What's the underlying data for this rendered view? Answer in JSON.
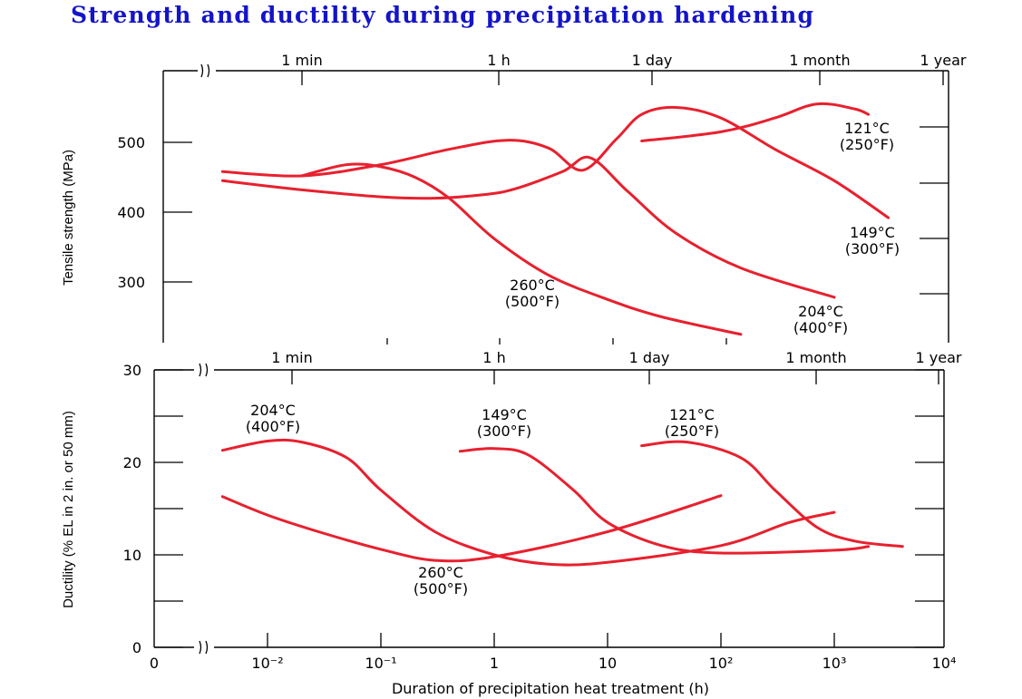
{
  "title": "Strength and ductility during precipitation hardening",
  "colors": {
    "title": "#1414c8",
    "curve": "#e8202e",
    "axis": "#000000"
  },
  "chart_data": [
    {
      "type": "line",
      "ylabel": "Tensile strength (MPa)",
      "xscale": "log",
      "xlim": [
        0.001,
        10000
      ],
      "ylim": [
        220,
        600
      ],
      "yticks": [
        300,
        400,
        500
      ],
      "top_time_labels": [
        "1 min",
        "1 h",
        "1 day",
        "1 month",
        "1 year"
      ],
      "top_time_positions_h": [
        0.01667,
        1,
        24,
        720,
        8760
      ],
      "series": [
        {
          "name": "121°C (250°F)",
          "label_lines": [
            "121°C",
            "(250°F)"
          ],
          "points": [
            [
              20,
              502
            ],
            [
              100,
              515
            ],
            [
              300,
              535
            ],
            [
              700,
              555
            ],
            [
              1500,
              548
            ],
            [
              2000,
              540
            ]
          ]
        },
        {
          "name": "149°C (300°F)",
          "label_lines": [
            "149°C",
            "(300°F)"
          ],
          "points": [
            [
              0.004,
              458
            ],
            [
              0.02,
              452
            ],
            [
              0.1,
              468
            ],
            [
              0.4,
              490
            ],
            [
              1.3,
              503
            ],
            [
              3,
              492
            ],
            [
              6,
              460
            ],
            [
              12,
              505
            ],
            [
              20,
              540
            ],
            [
              40,
              550
            ],
            [
              100,
              535
            ],
            [
              300,
              490
            ],
            [
              1000,
              445
            ],
            [
              3000,
              392
            ]
          ]
        },
        {
          "name": "204°C (400°F)",
          "label_lines": [
            "204°C",
            "(400°F)"
          ],
          "points": [
            [
              0.004,
              445
            ],
            [
              0.02,
              432
            ],
            [
              0.1,
              422
            ],
            [
              0.3,
              420
            ],
            [
              0.8,
              425
            ],
            [
              1.5,
              433
            ],
            [
              4,
              458
            ],
            [
              7,
              478
            ],
            [
              15,
              430
            ],
            [
              40,
              370
            ],
            [
              150,
              320
            ],
            [
              1000,
              278
            ]
          ]
        },
        {
          "name": "260°C (500°F)",
          "label_lines": [
            "260°C",
            "(500°F)"
          ],
          "points": [
            [
              0.02,
              452
            ],
            [
              0.05,
              468
            ],
            [
              0.1,
              465
            ],
            [
              0.2,
              450
            ],
            [
              0.4,
              420
            ],
            [
              1,
              362
            ],
            [
              3,
              310
            ],
            [
              10,
              275
            ],
            [
              30,
              250
            ],
            [
              150,
              225
            ]
          ]
        }
      ]
    },
    {
      "type": "line",
      "ylabel": "Ductility (% EL in 2 in. or 50 mm)",
      "xlabel": "Duration of precipitation heat treatment (h)",
      "xscale": "log",
      "xlim": [
        0.001,
        10000
      ],
      "ylim": [
        0,
        30
      ],
      "yticks": [
        0,
        10,
        20,
        30
      ],
      "xtick_labels": [
        "0",
        "10⁻²",
        "10⁻¹",
        "1",
        "10",
        "10²",
        "10³",
        "10⁴"
      ],
      "top_time_labels": [
        "1 min",
        "1 h",
        "1 day",
        "1 month",
        "1 year"
      ],
      "top_time_positions_h": [
        0.01667,
        1,
        24,
        720,
        8760
      ],
      "series": [
        {
          "name": "204°C (400°F)",
          "label_lines": [
            "204°C",
            "(400°F)"
          ],
          "points": [
            [
              0.004,
              21.3
            ],
            [
              0.01,
              22.3
            ],
            [
              0.02,
              22.2
            ],
            [
              0.05,
              20.5
            ],
            [
              0.1,
              17
            ],
            [
              0.3,
              12.5
            ],
            [
              1,
              10
            ],
            [
              3,
              9
            ],
            [
              10,
              9.2
            ],
            [
              100,
              11
            ],
            [
              400,
              13.5
            ],
            [
              1000,
              14.6
            ]
          ]
        },
        {
          "name": "149°C (300°F)",
          "label_lines": [
            "149°C",
            "(300°F)"
          ],
          "points": [
            [
              0.5,
              21.2
            ],
            [
              1,
              21.5
            ],
            [
              2,
              20.8
            ],
            [
              5,
              17
            ],
            [
              10,
              13.5
            ],
            [
              30,
              11
            ],
            [
              100,
              10.2
            ],
            [
              1000,
              10.5
            ],
            [
              2000,
              10.9
            ]
          ]
        },
        {
          "name": "121°C (250°F)",
          "label_lines": [
            "121°C",
            "(250°F)"
          ],
          "points": [
            [
              20,
              21.8
            ],
            [
              50,
              22.2
            ],
            [
              150,
              20.5
            ],
            [
              300,
              17
            ],
            [
              700,
              13
            ],
            [
              1500,
              11.5
            ],
            [
              4000,
              10.9
            ]
          ]
        },
        {
          "name": "260°C (500°F)",
          "label_lines": [
            "260°C",
            "(500°F)"
          ],
          "points": [
            [
              0.004,
              16.3
            ],
            [
              0.01,
              14.3
            ],
            [
              0.03,
              12.4
            ],
            [
              0.1,
              10.6
            ],
            [
              0.3,
              9.4
            ],
            [
              1,
              9.8
            ],
            [
              10,
              12.5
            ],
            [
              100,
              16.4
            ]
          ]
        }
      ]
    }
  ]
}
